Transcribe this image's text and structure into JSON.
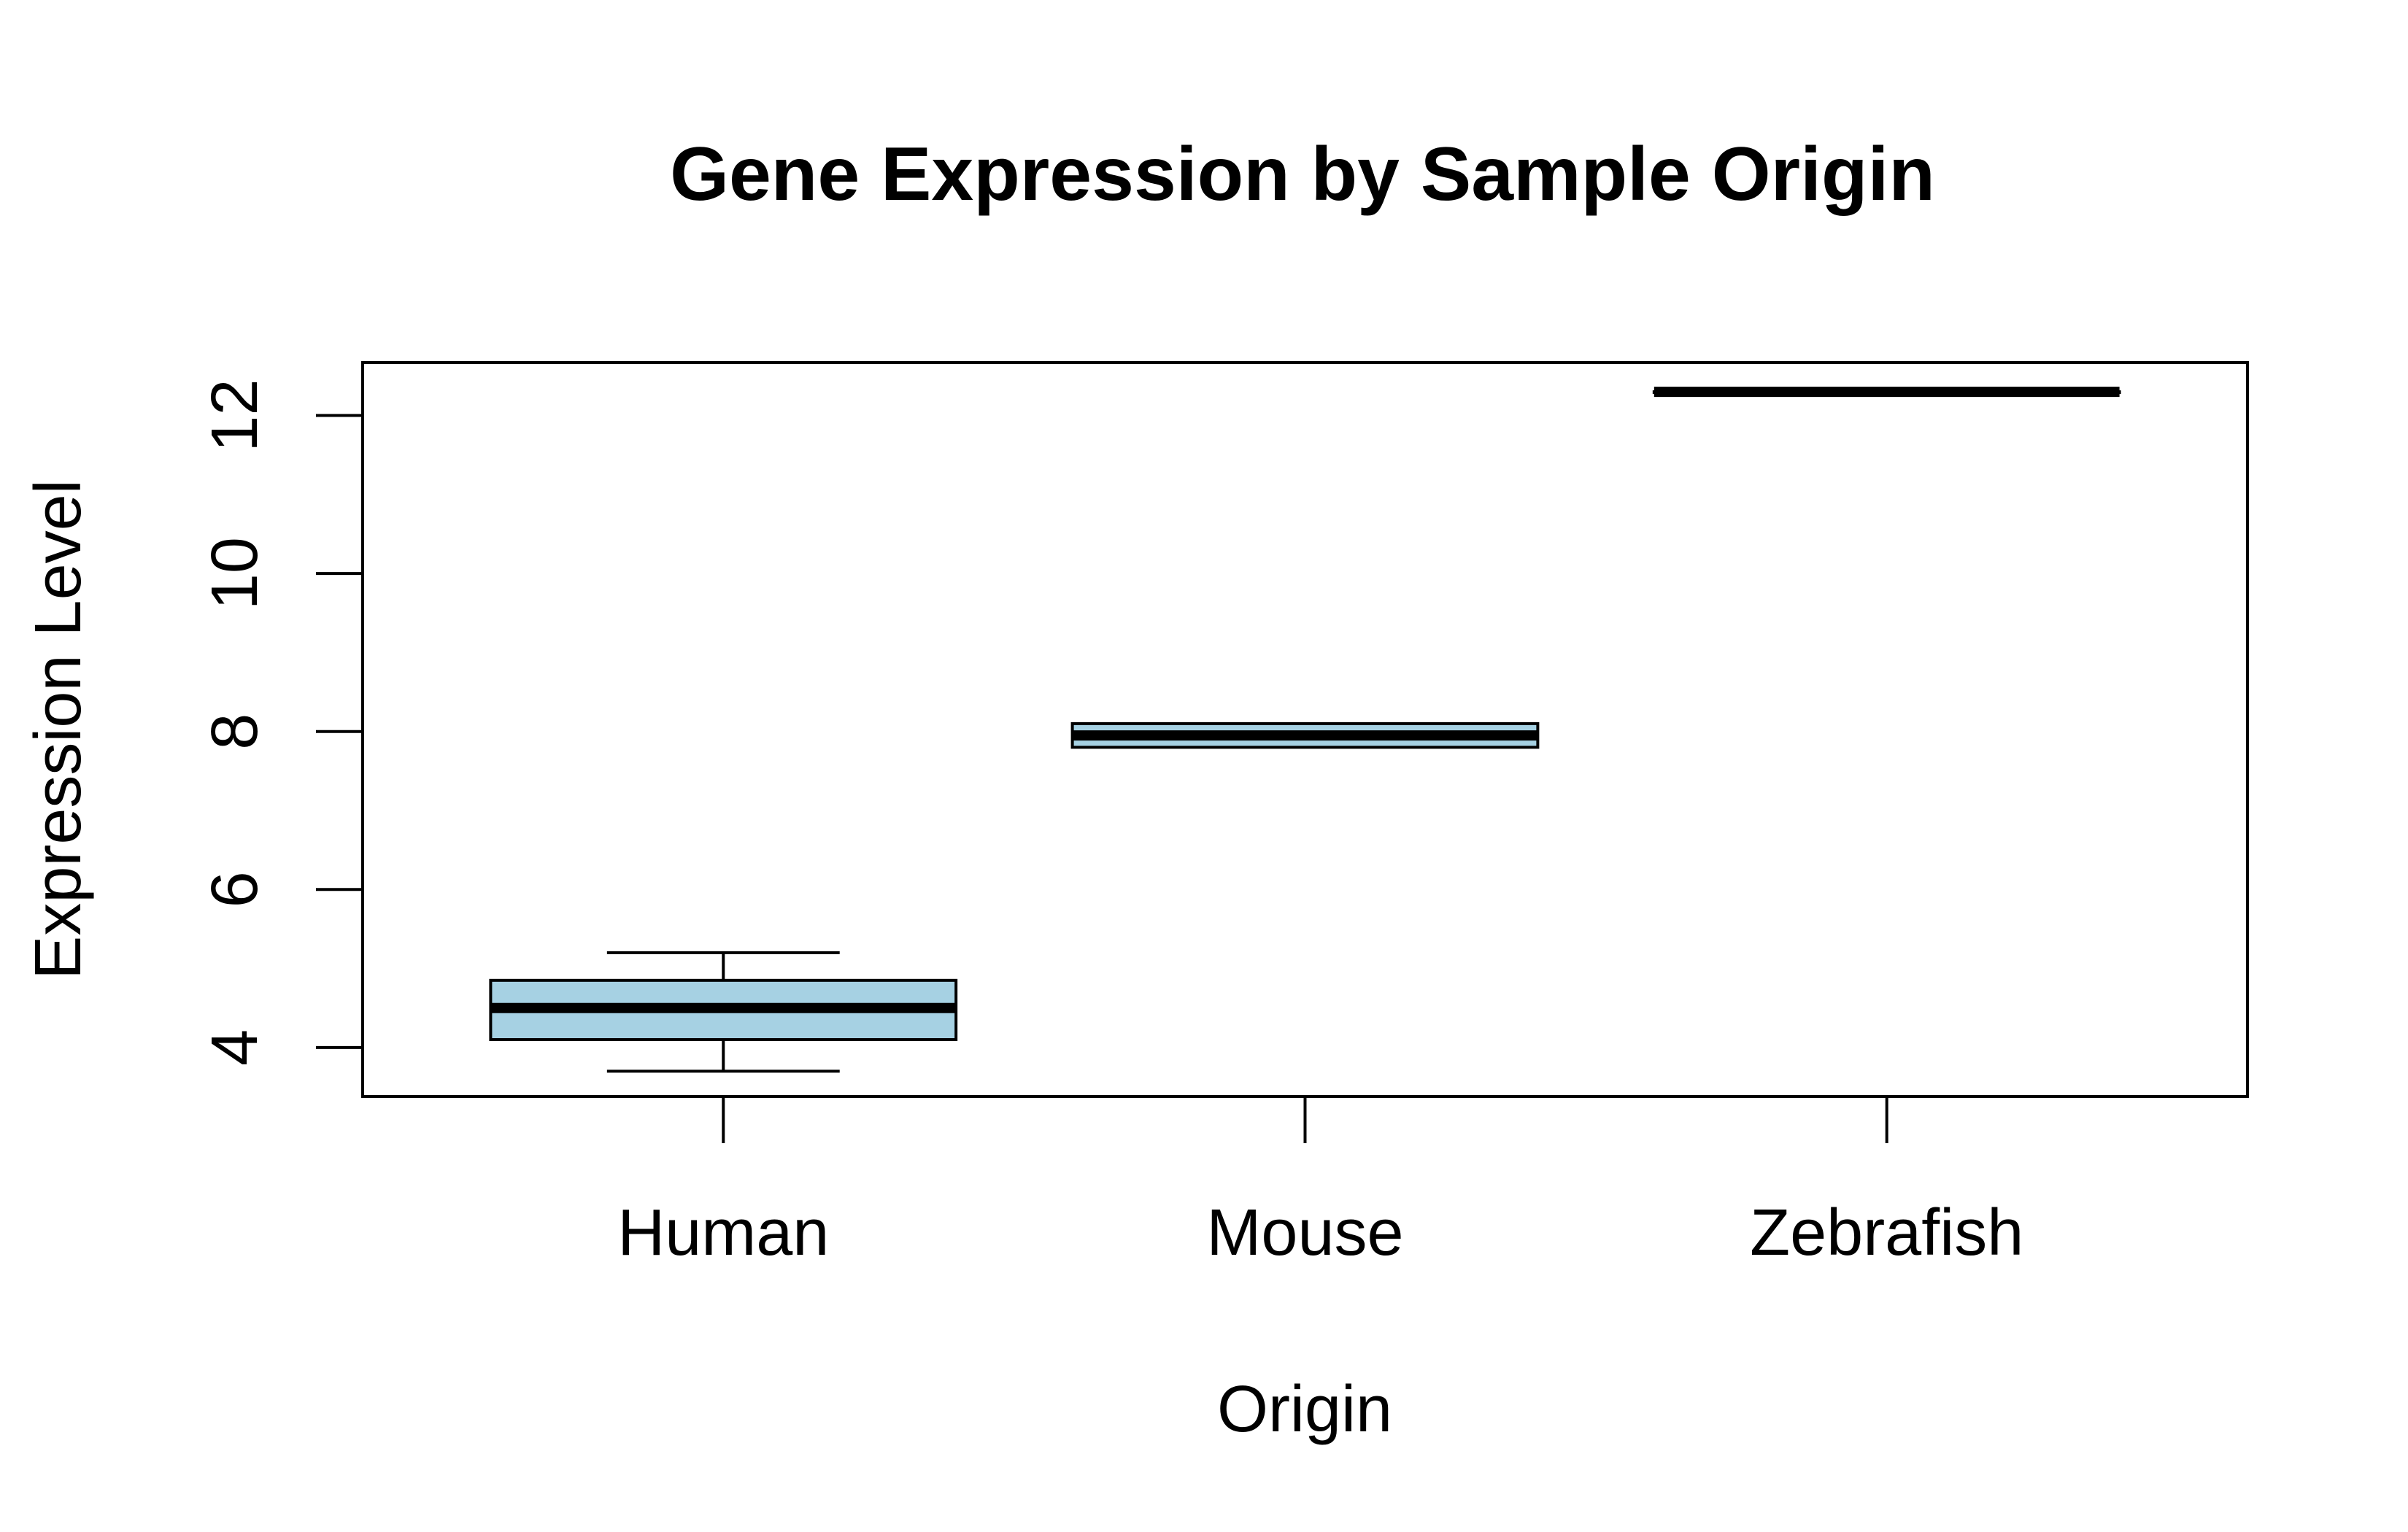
{
  "chart_data": {
    "type": "boxplot",
    "title": "Gene Expression by Sample Origin",
    "xlabel": "Origin",
    "ylabel": "Expression Level",
    "ylim": [
      3.38,
      12.67
    ],
    "y_ticks": [
      4,
      6,
      8,
      10,
      12
    ],
    "categories": [
      "Human",
      "Mouse",
      "Zebrafish"
    ],
    "boxes": [
      {
        "name": "Human",
        "min": 3.7,
        "q1": 4.1,
        "median": 4.5,
        "q3": 4.85,
        "max": 5.2
      },
      {
        "name": "Mouse",
        "min": 7.8,
        "q1": 7.8,
        "median": 7.95,
        "q3": 8.1,
        "max": 8.1
      },
      {
        "name": "Zebrafish",
        "min": 12.3,
        "q1": 12.3,
        "median": 12.3,
        "q3": 12.3,
        "max": 12.3
      }
    ],
    "box_fill": "#a6d1e3",
    "grid": false,
    "legend": "none"
  }
}
